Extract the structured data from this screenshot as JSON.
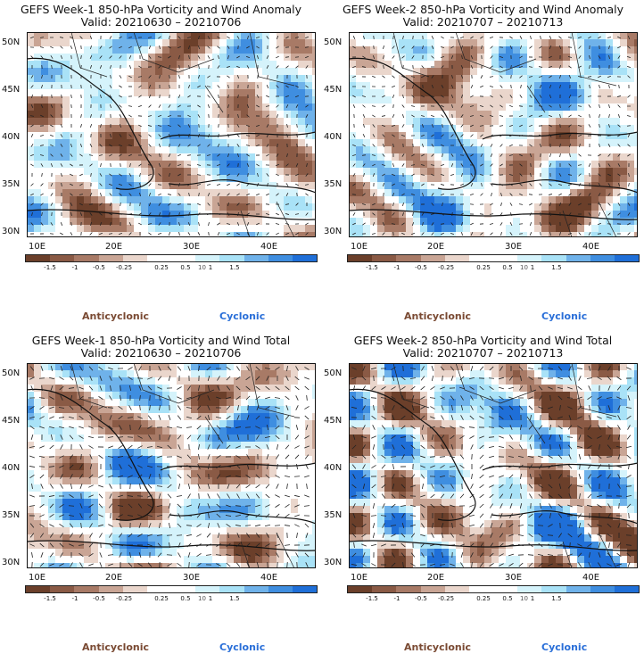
{
  "colors": {
    "scale": [
      "#6b3f2a",
      "#8a5a45",
      "#a87a66",
      "#c9a595",
      "#ead6cc",
      "#ffffff",
      "#ffffff",
      "#d5f3fb",
      "#a9e2f7",
      "#6fb2ea",
      "#3f8ee0",
      "#1f6fd8"
    ],
    "anticyclonic": "#7a4a33",
    "cyclonic": "#2a6fd8"
  },
  "colorbar": {
    "ticks": [
      "-1.5",
      "-1",
      "-0.5",
      "-0.25",
      "0.25",
      "0.5",
      "1",
      "1.5"
    ],
    "unit": "10"
  },
  "axes": {
    "lat": [
      "50N",
      "45N",
      "40N",
      "35N",
      "30N"
    ],
    "lon": [
      "10E",
      "20E",
      "30E",
      "40E"
    ]
  },
  "legend": {
    "anticyclonic": "Anticyclonic",
    "cyclonic": "Cyclonic"
  },
  "panels": [
    {
      "title": "GEFS Week-1 850-hPa Vorticity and Wind Anomaly",
      "valid": "Valid: 20210630 – 20210706"
    },
    {
      "title": "GEFS Week-2 850-hPa Vorticity and Wind Anomaly",
      "valid": "Valid: 20210707 – 20210713"
    },
    {
      "title": "GEFS Week-1 850-hPa Vorticity and Wind Total",
      "valid": "Valid: 20210630 – 20210706"
    },
    {
      "title": "GEFS Week-2 850-hPa Vorticity and Wind Total",
      "valid": "Valid: 20210707 – 20210713"
    }
  ]
}
